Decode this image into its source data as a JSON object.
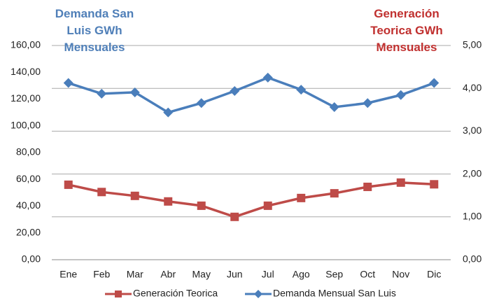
{
  "chart_data": {
    "type": "line",
    "title_left": "Demanda San Luis GWh Mensuales",
    "title_right": "Generación Teorica GWh Mensuales",
    "categories": [
      "Ene",
      "Feb",
      "Mar",
      "Abr",
      "May",
      "Jun",
      "Jul",
      "Ago",
      "Sep",
      "Oct",
      "Nov",
      "Dic"
    ],
    "series": [
      {
        "name": "Generación Teorica",
        "color": "#be4b48",
        "axis": "y2",
        "marker": "square",
        "values": [
          1.75,
          1.58,
          1.49,
          1.36,
          1.26,
          1.0,
          1.26,
          1.44,
          1.55,
          1.7,
          1.8,
          1.76
        ]
      },
      {
        "name": "Demanda Mensual San Luis",
        "color": "#4a7ebb",
        "axis": "y",
        "marker": "diamond",
        "values": [
          132,
          124,
          125,
          110,
          117,
          126,
          136,
          127,
          114,
          117,
          123,
          132
        ]
      }
    ],
    "ylim": [
      0,
      160
    ],
    "yticks": [
      {
        "value": 0,
        "label": "0,00"
      },
      {
        "value": 20,
        "label": "20,00"
      },
      {
        "value": 40,
        "label": "40,00"
      },
      {
        "value": 60,
        "label": "60,00"
      },
      {
        "value": 80,
        "label": "80,00"
      },
      {
        "value": 100,
        "label": "100,00"
      },
      {
        "value": 120,
        "label": "120,00"
      },
      {
        "value": 140,
        "label": "140,00"
      },
      {
        "value": 160,
        "label": "160,00"
      }
    ],
    "y2lim": [
      0,
      5
    ],
    "y2ticks": [
      {
        "value": 0,
        "label": "0,00"
      },
      {
        "value": 1,
        "label": "1,00"
      },
      {
        "value": 2,
        "label": "2,00"
      },
      {
        "value": 3,
        "label": "3,00"
      },
      {
        "value": 4,
        "label": "4,00"
      },
      {
        "value": 5,
        "label": "5,00"
      }
    ],
    "grid": "y2",
    "legend": "bottom"
  }
}
